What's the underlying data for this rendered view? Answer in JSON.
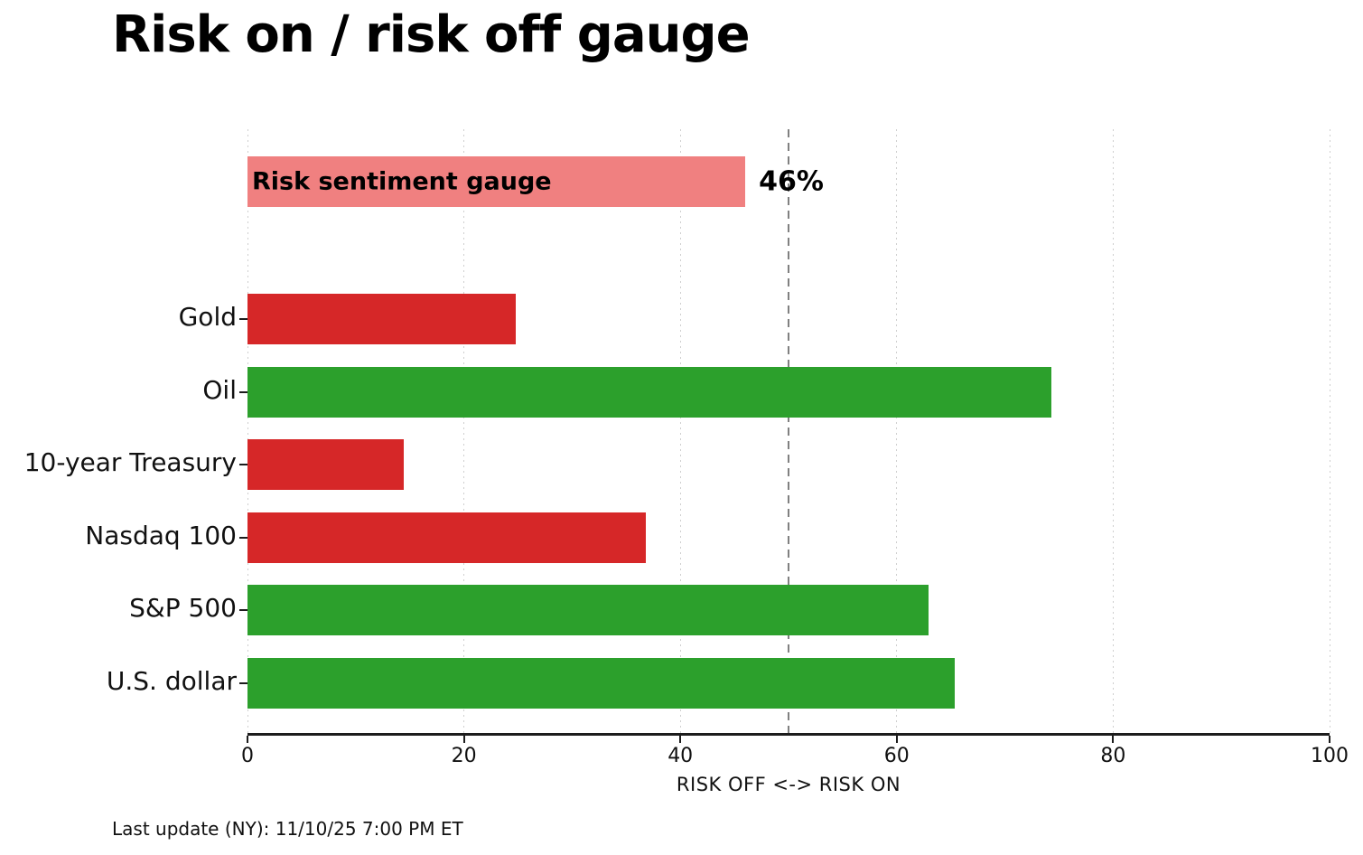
{
  "title": "Risk on / risk off gauge",
  "footer": "Last update (NY): 11/10/25 7:00 PM ET",
  "colors": {
    "risk_off_red": "#d62728",
    "risk_on_green": "#2ca02c",
    "gauge_pink": "#f08080",
    "refline_gray": "#808080",
    "gridline_gray": "#cfcfcf",
    "axis_dark": "#1c1c1c",
    "background": "#ffffff"
  },
  "chart_data": {
    "type": "bar",
    "orientation": "horizontal",
    "title": "Risk on / risk off gauge",
    "xlabel": "RISK OFF <-> RISK ON",
    "xlim": [
      0,
      100
    ],
    "xticks": [
      0,
      20,
      40,
      60,
      80,
      100
    ],
    "xtick_labels": [
      "0",
      "20",
      "40",
      "60",
      "80",
      "100"
    ],
    "grid": "vertical dotted gridlines at each x tick",
    "legend_position": "none",
    "reference_line": {
      "x": 50,
      "style": "dashed",
      "color": "#808080"
    },
    "gauge": {
      "label": "Risk sentiment gauge",
      "value": 46,
      "value_label": "46%",
      "color": "#f08080"
    },
    "categories": [
      "Gold",
      "Oil",
      "10-year Treasury",
      "Nasdaq 100",
      "S&P 500",
      "U.S. dollar"
    ],
    "values": [
      24.8,
      74.3,
      14.4,
      36.8,
      62.9,
      65.4
    ],
    "bar_colors": [
      "#d62728",
      "#2ca02c",
      "#d62728",
      "#d62728",
      "#2ca02c",
      "#2ca02c"
    ],
    "color_meaning": {
      "#d62728": "risk off",
      "#2ca02c": "risk on"
    }
  }
}
